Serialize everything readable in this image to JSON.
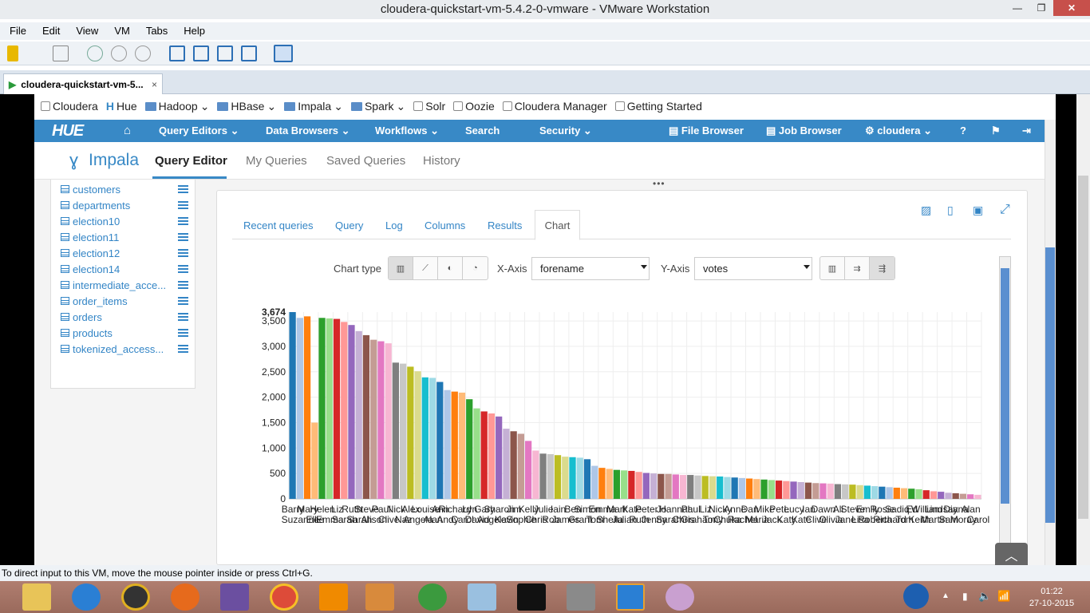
{
  "window": {
    "title": "cloudera-quickstart-vm-5.4.2-0-vmware - VMware Workstation",
    "tab_label": "cloudera-quickstart-vm-5...",
    "close_glyph": "✕",
    "tab_close_glyph": "×"
  },
  "menu": [
    "File",
    "Edit",
    "View",
    "VM",
    "Tabs",
    "Help"
  ],
  "bookmarks": [
    "Cloudera",
    "Hue",
    "Hadoop",
    "HBase",
    "Impala",
    "Spark",
    "Solr",
    "Oozie",
    "Cloudera Manager",
    "Getting Started"
  ],
  "hue_nav": {
    "logo": "HUE",
    "query_editors": "Query Editors",
    "data_browsers": "Data Browsers",
    "workflows": "Workflows",
    "search": "Search",
    "security": "Security",
    "file_browser": "File Browser",
    "job_browser": "Job Browser",
    "user": "cloudera"
  },
  "subnav": {
    "app": "Impala",
    "items": [
      "Query Editor",
      "My Queries",
      "Saved Queries",
      "History"
    ]
  },
  "tables": [
    "customers",
    "departments",
    "election10",
    "election11",
    "election12",
    "election14",
    "intermediate_acce...",
    "order_items",
    "orders",
    "products",
    "tokenized_access..."
  ],
  "result_tabs": [
    "Recent queries",
    "Query",
    "Log",
    "Columns",
    "Results",
    "Chart"
  ],
  "controls": {
    "chart_type_label": "Chart type",
    "x_axis_label": "X-Axis",
    "x_axis_value": "forename",
    "y_axis_label": "Y-Axis",
    "y_axis_value": "votes"
  },
  "status_text": "To direct input to this VM, move the mouse pointer inside or press Ctrl+G.",
  "clock": {
    "time": "01:22",
    "date": "27-10-2015"
  },
  "chart_data": {
    "type": "bar",
    "ylabel": "",
    "xlabel": "forename",
    "ylim": [
      0,
      3674
    ],
    "yticks": [
      0,
      500,
      1000,
      1500,
      2000,
      2500,
      3000,
      3500
    ],
    "max_label": "3,674",
    "categories": [
      "Barry",
      "Suzanne",
      "Mary",
      "Ellie",
      "Helen",
      "Emma",
      "Liz",
      "Sarah",
      "Ruth",
      "Sarah",
      "Steve",
      "Alison",
      "Paul",
      "Clive",
      "Nick",
      "Naz",
      "Alex",
      "Angela",
      "Louise",
      "Alan",
      "Ann",
      "Andy",
      "Richard",
      "Carol",
      "Lyn",
      "David",
      "Gary",
      "Angela",
      "Sharon",
      "Kevin",
      "Jim",
      "Sophie",
      "Kelly",
      "Chris",
      "Julie",
      "Rob",
      "Iain",
      "James",
      "Ben",
      "Grant",
      "Simon",
      "Tom",
      "Emma",
      "Sheila",
      "Mark",
      "Julian",
      "Kate",
      "Ruth",
      "Peter",
      "Jenny",
      "Jo",
      "Sarah",
      "Hannah",
      "Chris",
      "Paul",
      "Graham",
      "Liz",
      "Tony",
      "Nicky",
      "Chuka",
      "Anne",
      "Rachel",
      "Dan",
      "Maria",
      "Mike",
      "Jack",
      "Pete",
      "Katy",
      "Lucy",
      "Kate",
      "Ian",
      "Clive",
      "Dawn",
      "Olivia",
      "Ali",
      "Jane",
      "Steve",
      "Lisa",
      "Emily",
      "Roberta",
      "Rosie",
      "Richard",
      "Sadiq",
      "Tom",
      "Ed",
      "Keith",
      "William",
      "Martin",
      "Lindsay",
      "Sam",
      "Diana",
      "Moray",
      "Alan",
      "Carol"
    ],
    "values": [
      3674,
      3560,
      3590,
      1500,
      3560,
      3550,
      3540,
      3480,
      3420,
      3300,
      3220,
      3130,
      3100,
      3060,
      2680,
      2660,
      2600,
      2510,
      2390,
      2380,
      2300,
      2140,
      2110,
      2090,
      1960,
      1780,
      1720,
      1680,
      1620,
      1380,
      1330,
      1280,
      1140,
      950,
      890,
      880,
      860,
      830,
      820,
      810,
      780,
      650,
      610,
      590,
      570,
      560,
      550,
      530,
      510,
      500,
      490,
      490,
      480,
      470,
      470,
      460,
      450,
      445,
      440,
      430,
      420,
      410,
      400,
      390,
      380,
      370,
      360,
      350,
      340,
      330,
      320,
      310,
      305,
      300,
      290,
      285,
      280,
      270,
      260,
      250,
      240,
      230,
      220,
      210,
      200,
      190,
      170,
      150,
      140,
      120,
      110,
      100,
      90,
      80
    ]
  }
}
